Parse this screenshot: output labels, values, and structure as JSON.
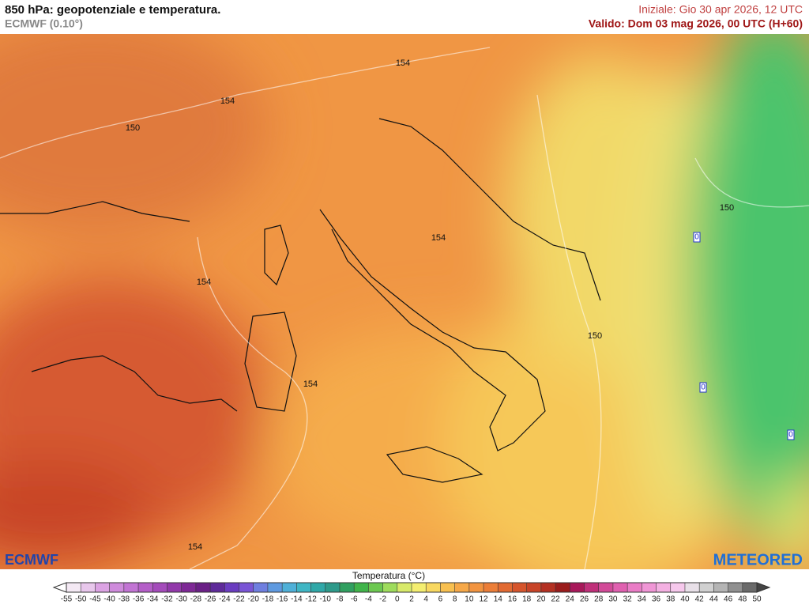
{
  "header": {
    "title": "850 hPa: geopotenziale e temperatura.",
    "model": "ECMWF (0.10°)",
    "init": "Iniziale: Gio 30 apr 2026, 12 UTC",
    "valid": "Valido: Dom 03 mag 2026, 00 UTC (H+60)"
  },
  "map": {
    "contour_labels": [
      "154",
      "154",
      "150",
      "150",
      "154",
      "154",
      "150",
      "154",
      "154",
      "0",
      "0",
      "0"
    ]
  },
  "logos": {
    "left": "ECMWF",
    "right": "METEORED"
  },
  "legend": {
    "title": "Temperatura (°C)",
    "ticks": [
      -55,
      -50,
      -45,
      -40,
      -38,
      -36,
      -34,
      -32,
      -30,
      -28,
      -26,
      -24,
      -22,
      -20,
      -18,
      -16,
      -14,
      -12,
      -10,
      -8,
      -6,
      -4,
      -2,
      0,
      2,
      4,
      6,
      8,
      10,
      12,
      14,
      16,
      18,
      20,
      22,
      24,
      26,
      28,
      30,
      32,
      34,
      36,
      38,
      40,
      42,
      44,
      46,
      48,
      50
    ],
    "colors": [
      "#f4e9f4",
      "#e8c7ec",
      "#dca3e4",
      "#cf8bdc",
      "#c274d4",
      "#b45ec8",
      "#a44bbb",
      "#9238aa",
      "#7e2896",
      "#6a1f86",
      "#5e2a9a",
      "#6a3cc0",
      "#7a55d6",
      "#6f7fe0",
      "#5f9ae0",
      "#4fb0d8",
      "#3fb6c4",
      "#2fa8a8",
      "#2d9a8a",
      "#30a060",
      "#40b44a",
      "#6cc850",
      "#9edc5c",
      "#d8ea6a",
      "#f4ee70",
      "#f8d860",
      "#f8c050",
      "#f6a848",
      "#f29440",
      "#ec7e38",
      "#e26a32",
      "#d6552c",
      "#c84428",
      "#b43022",
      "#9a1c1c",
      "#a8185a",
      "#c0307a",
      "#d24a98",
      "#e060b0",
      "#ea7cc6",
      "#f096d6",
      "#f4b0e2",
      "#f6c8ec",
      "#e8e0e8",
      "#d0d0d0",
      "#b4b4b4",
      "#909090",
      "#6a6a6a"
    ]
  }
}
